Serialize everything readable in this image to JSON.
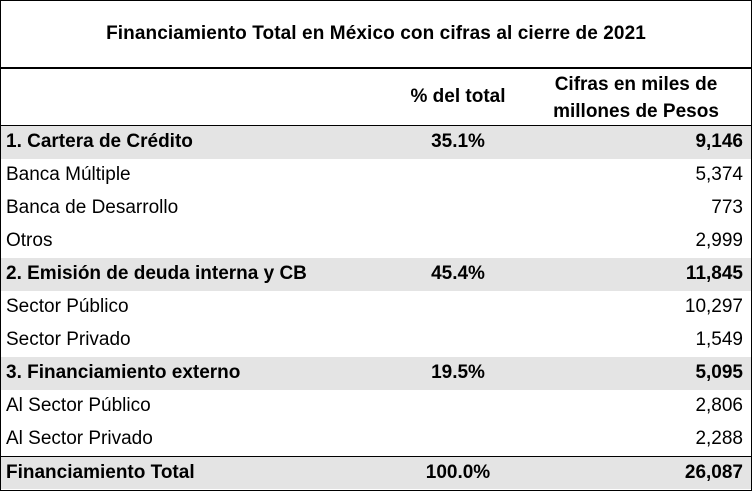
{
  "title": "Financiamiento Total en México con cifras al cierre de 2021",
  "header": {
    "pct_label": "% del total",
    "cifras_label": "Cifras en miles de\nmillones de Pesos"
  },
  "rows": [
    {
      "label": "1. Cartera de Crédito",
      "pct": "35.1%",
      "value": "9,146"
    },
    {
      "label": "Banca Múltiple",
      "pct": "",
      "value": "5,374"
    },
    {
      "label": "Banca de Desarrollo",
      "pct": "",
      "value": "773"
    },
    {
      "label": "Otros",
      "pct": "",
      "value": "2,999"
    },
    {
      "label": "2. Emisión de deuda interna y CB",
      "pct": "45.4%",
      "value": "11,845"
    },
    {
      "label": "Sector Público",
      "pct": "",
      "value": "10,297"
    },
    {
      "label": "Sector Privado",
      "pct": "",
      "value": "1,549"
    },
    {
      "label": "3. Financiamiento externo",
      "pct": "19.5%",
      "value": "5,095"
    },
    {
      "label": "Al Sector Público",
      "pct": "",
      "value": "2,806"
    },
    {
      "label": "Al Sector Privado",
      "pct": "",
      "value": "2,288"
    },
    {
      "label": "Financiamiento Total",
      "pct": "100.0%",
      "value": "26,087"
    }
  ]
}
